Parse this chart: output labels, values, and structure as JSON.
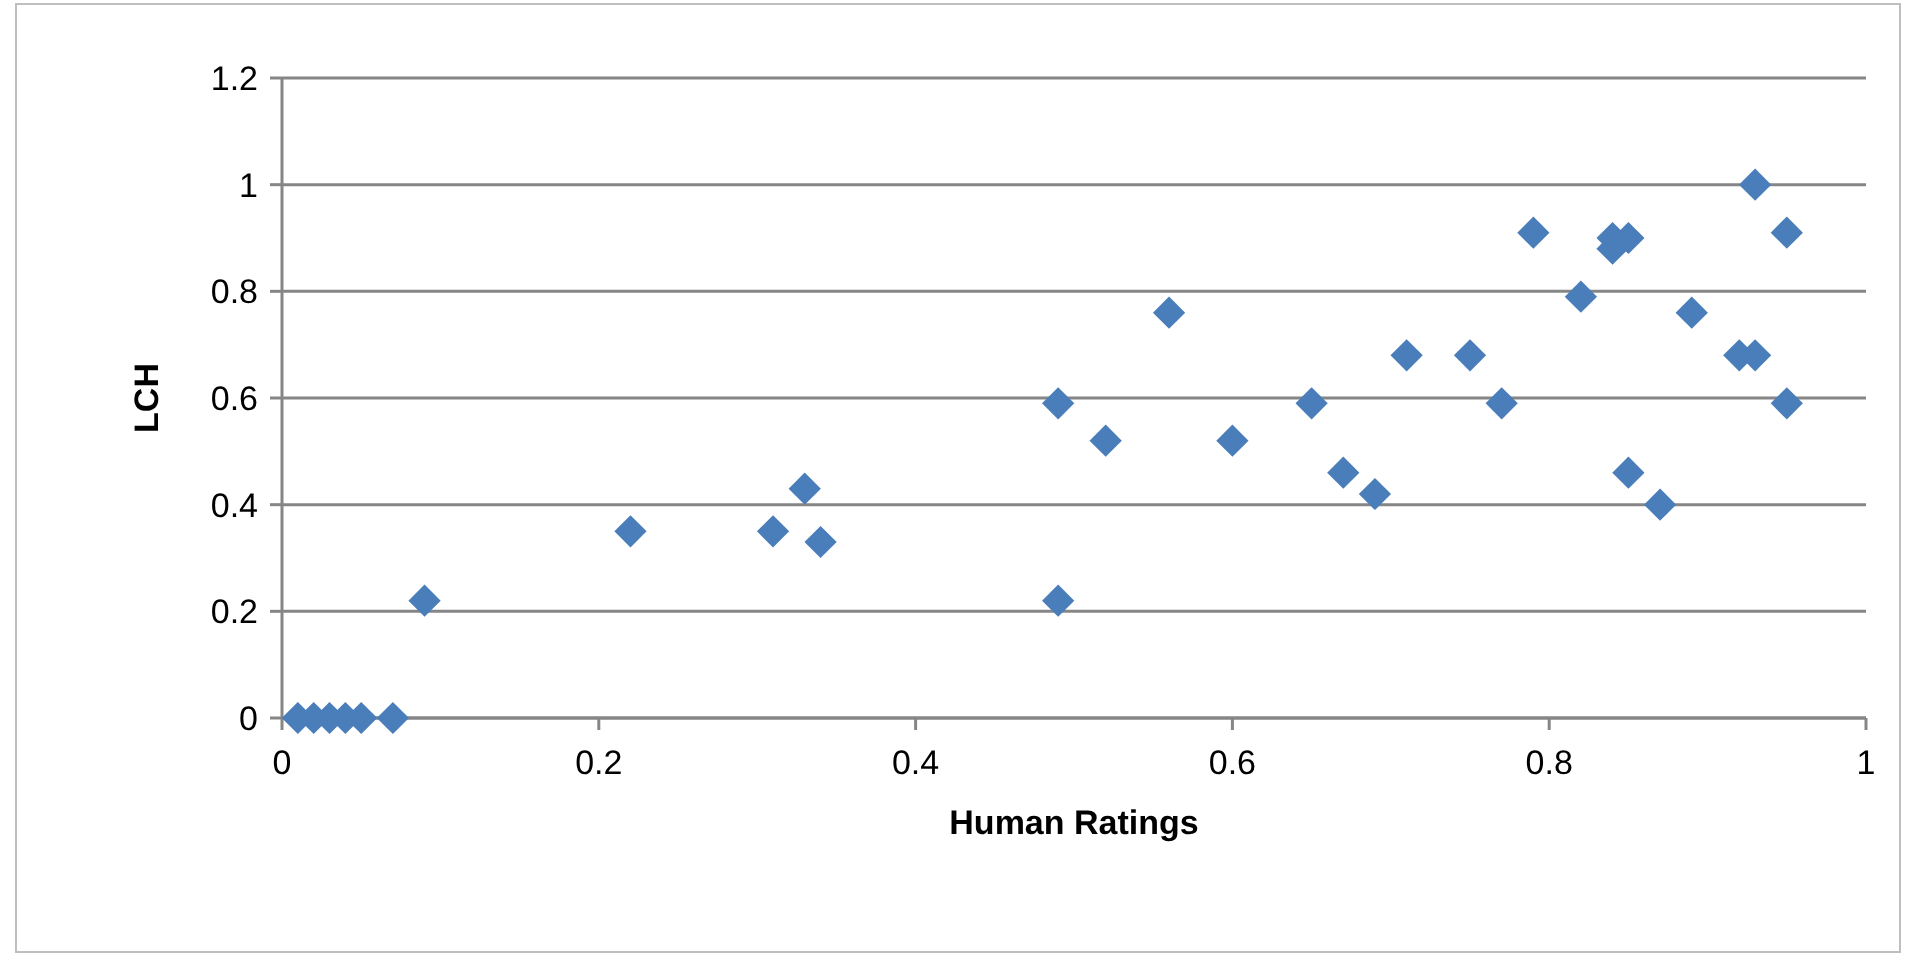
{
  "chart_data": {
    "type": "scatter",
    "xlabel": "Human Ratings",
    "ylabel": "LCH",
    "xlim": [
      0,
      1
    ],
    "ylim": [
      0,
      1.2
    ],
    "xticks": [
      0,
      0.2,
      0.4,
      0.6,
      0.8,
      1
    ],
    "yticks": [
      0,
      0.2,
      0.4,
      0.6,
      0.8,
      1,
      1.2
    ],
    "grid": "y",
    "marker": "diamond",
    "series": [
      {
        "color": "#4a7ebb",
        "x": [
          0.01,
          0.02,
          0.03,
          0.04,
          0.05,
          0.07,
          0.09,
          0.22,
          0.31,
          0.33,
          0.34,
          0.49,
          0.49,
          0.52,
          0.56,
          0.6,
          0.65,
          0.67,
          0.69,
          0.71,
          0.75,
          0.77,
          0.79,
          0.82,
          0.84,
          0.84,
          0.85,
          0.85,
          0.87,
          0.89,
          0.92,
          0.93,
          0.93,
          0.95,
          0.95
        ],
        "values": [
          0,
          0,
          0,
          0,
          0,
          0,
          0.22,
          0.35,
          0.35,
          0.43,
          0.33,
          0.22,
          0.59,
          0.52,
          0.76,
          0.52,
          0.59,
          0.46,
          0.42,
          0.68,
          0.68,
          0.59,
          0.91,
          0.79,
          0.88,
          0.9,
          0.9,
          0.46,
          0.4,
          0.76,
          0.68,
          0.68,
          1,
          0.91,
          0.59
        ]
      }
    ]
  }
}
